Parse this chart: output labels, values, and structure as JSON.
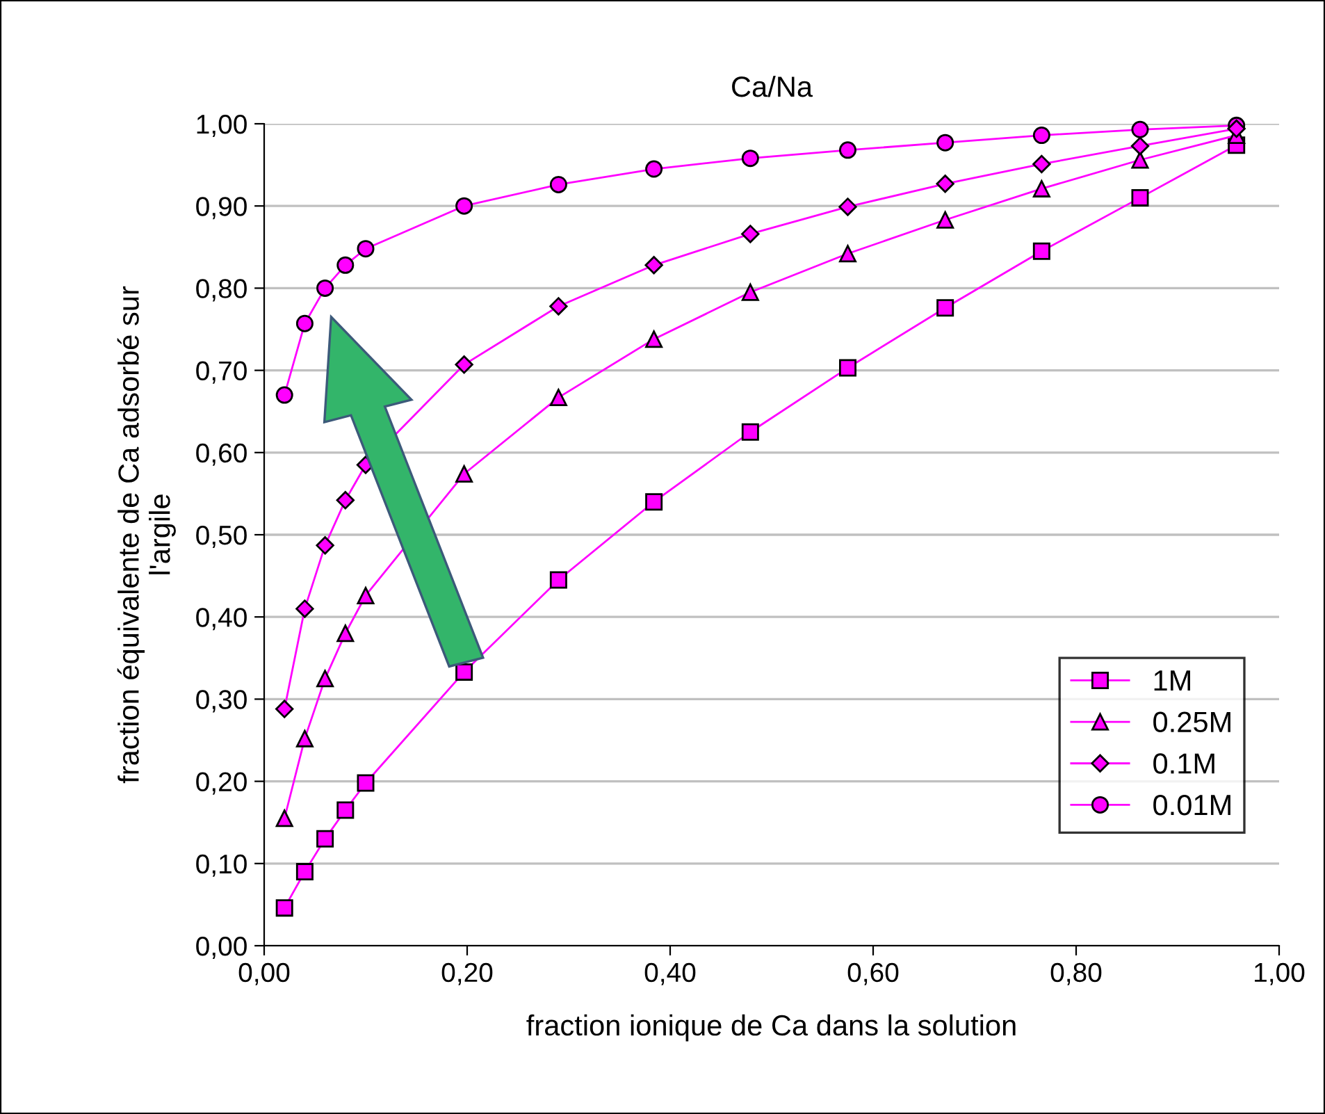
{
  "chart_data": {
    "type": "line",
    "title": "Ca/Na",
    "xlabel": "fraction ionique de Ca dans la solution",
    "ylabel": "fraction équivalente de Ca adsorbé sur\nl'argile",
    "x": [
      0.02,
      0.04,
      0.06,
      0.08,
      0.1,
      0.197,
      0.29,
      0.384,
      0.479,
      0.575,
      0.671,
      0.766,
      0.863,
      0.958
    ],
    "series": [
      {
        "name": "1M",
        "color": "#ff00ff",
        "marker": "square",
        "values": [
          0.046,
          0.09,
          0.13,
          0.165,
          0.198,
          0.333,
          0.445,
          0.54,
          0.625,
          0.703,
          0.776,
          0.845,
          0.91,
          0.974
        ]
      },
      {
        "name": "0.25M",
        "color": "#ff00ff",
        "marker": "triangle",
        "values": [
          0.155,
          0.252,
          0.325,
          0.38,
          0.426,
          0.574,
          0.667,
          0.738,
          0.795,
          0.842,
          0.883,
          0.921,
          0.956,
          0.986
        ]
      },
      {
        "name": "0.1M",
        "color": "#ff00ff",
        "marker": "diamond",
        "values": [
          0.288,
          0.41,
          0.487,
          0.542,
          0.585,
          0.707,
          0.778,
          0.828,
          0.866,
          0.899,
          0.927,
          0.951,
          0.973,
          0.994
        ]
      },
      {
        "name": "0.01M",
        "color": "#ff00ff",
        "marker": "circle",
        "values": [
          0.67,
          0.757,
          0.8,
          0.828,
          0.848,
          0.9,
          0.926,
          0.945,
          0.958,
          0.968,
          0.977,
          0.986,
          0.993,
          0.998
        ]
      }
    ],
    "xlim": [
      0,
      1
    ],
    "ylim": [
      0,
      1
    ],
    "xticks": [
      {
        "value": 0,
        "label": "0,00"
      },
      {
        "value": 0.2,
        "label": "0,20"
      },
      {
        "value": 0.4,
        "label": "0,40"
      },
      {
        "value": 0.6,
        "label": "0,60"
      },
      {
        "value": 0.8,
        "label": "0,80"
      },
      {
        "value": 1,
        "label": "1,00"
      }
    ],
    "yticks": [
      {
        "value": 0,
        "label": "0,00"
      },
      {
        "value": 0.1,
        "label": "0,10"
      },
      {
        "value": 0.2,
        "label": "0,20"
      },
      {
        "value": 0.3,
        "label": "0,30"
      },
      {
        "value": 0.4,
        "label": "0,40"
      },
      {
        "value": 0.5,
        "label": "0,50"
      },
      {
        "value": 0.6,
        "label": "0,60"
      },
      {
        "value": 0.7,
        "label": "0,70"
      },
      {
        "value": 0.8,
        "label": "0,80"
      },
      {
        "value": 0.9,
        "label": "0,90"
      },
      {
        "value": 1,
        "label": "1,00"
      }
    ],
    "grid": "y",
    "legend": "bottom right",
    "line_style": "solid"
  }
}
